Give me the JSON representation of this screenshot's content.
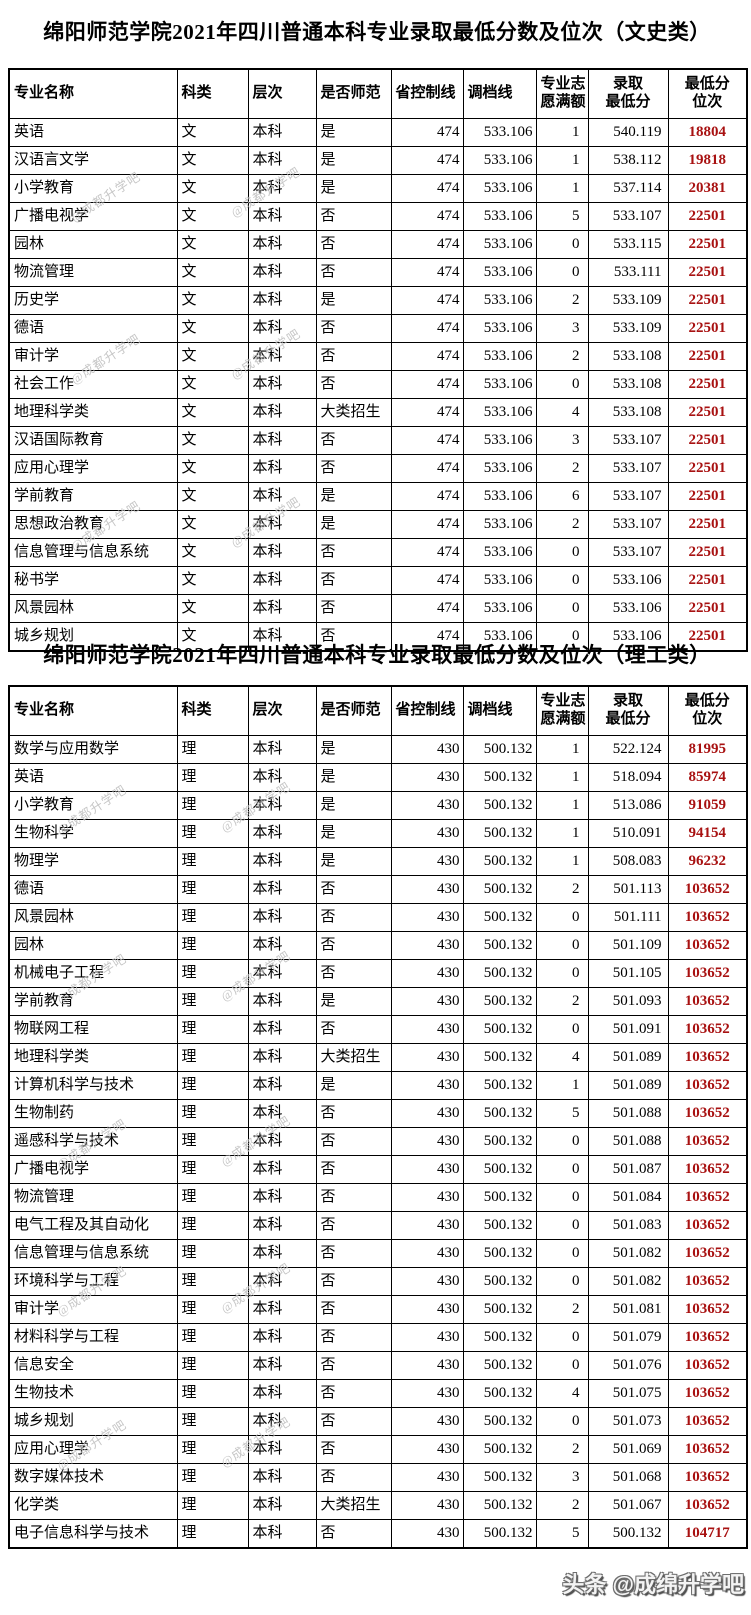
{
  "page": {
    "watermark": "@成都升学吧",
    "footer": "头条 @成绵升学吧",
    "colors": {
      "rank_red": "#a81111",
      "border": "#000000",
      "watermark_gray": "#bdbdbd"
    }
  },
  "columns": [
    "专业名称",
    "科类",
    "层次",
    "是否师范",
    "省控制线",
    "调档线",
    "专业志\n愿满额",
    "录取\n最低分",
    "最低分\n位次"
  ],
  "column_keys": [
    "major",
    "category",
    "level",
    "teacher-track",
    "province-control-line",
    "file-line",
    "major-quota-filled",
    "min-admit-score",
    "min-rank"
  ],
  "tables": [
    {
      "title": "绵阳师范学院2021年四川普通本科专业录取最低分数及位次（文史类）",
      "rows": [
        [
          "英语",
          "文",
          "本科",
          "是",
          "474",
          "533.106",
          "1",
          "540.119",
          "18804"
        ],
        [
          "汉语言文学",
          "文",
          "本科",
          "是",
          "474",
          "533.106",
          "1",
          "538.112",
          "19818"
        ],
        [
          "小学教育",
          "文",
          "本科",
          "是",
          "474",
          "533.106",
          "1",
          "537.114",
          "20381"
        ],
        [
          "广播电视学",
          "文",
          "本科",
          "否",
          "474",
          "533.106",
          "5",
          "533.107",
          "22501"
        ],
        [
          "园林",
          "文",
          "本科",
          "否",
          "474",
          "533.106",
          "0",
          "533.115",
          "22501"
        ],
        [
          "物流管理",
          "文",
          "本科",
          "否",
          "474",
          "533.106",
          "0",
          "533.111",
          "22501"
        ],
        [
          "历史学",
          "文",
          "本科",
          "是",
          "474",
          "533.106",
          "2",
          "533.109",
          "22501"
        ],
        [
          "德语",
          "文",
          "本科",
          "否",
          "474",
          "533.106",
          "3",
          "533.109",
          "22501"
        ],
        [
          "审计学",
          "文",
          "本科",
          "否",
          "474",
          "533.106",
          "2",
          "533.108",
          "22501"
        ],
        [
          "社会工作",
          "文",
          "本科",
          "否",
          "474",
          "533.106",
          "0",
          "533.108",
          "22501"
        ],
        [
          "地理科学类",
          "文",
          "本科",
          "大类招生",
          "474",
          "533.106",
          "4",
          "533.108",
          "22501"
        ],
        [
          "汉语国际教育",
          "文",
          "本科",
          "否",
          "474",
          "533.106",
          "3",
          "533.107",
          "22501"
        ],
        [
          "应用心理学",
          "文",
          "本科",
          "否",
          "474",
          "533.106",
          "2",
          "533.107",
          "22501"
        ],
        [
          "学前教育",
          "文",
          "本科",
          "是",
          "474",
          "533.106",
          "6",
          "533.107",
          "22501"
        ],
        [
          "思想政治教育",
          "文",
          "本科",
          "是",
          "474",
          "533.106",
          "2",
          "533.107",
          "22501"
        ],
        [
          "信息管理与信息系统",
          "文",
          "本科",
          "否",
          "474",
          "533.106",
          "0",
          "533.107",
          "22501"
        ],
        [
          "秘书学",
          "文",
          "本科",
          "否",
          "474",
          "533.106",
          "0",
          "533.106",
          "22501"
        ],
        [
          "风景园林",
          "文",
          "本科",
          "否",
          "474",
          "533.106",
          "0",
          "533.106",
          "22501"
        ],
        [
          "城乡规划",
          "文",
          "本科",
          "否",
          "474",
          "533.106",
          "0",
          "533.106",
          "22501"
        ]
      ]
    },
    {
      "title": "绵阳师范学院2021年四川普通本科专业录取最低分数及位次（理工类）",
      "rows": [
        [
          "数学与应用数学",
          "理",
          "本科",
          "是",
          "430",
          "500.132",
          "1",
          "522.124",
          "81995"
        ],
        [
          "英语",
          "理",
          "本科",
          "是",
          "430",
          "500.132",
          "1",
          "518.094",
          "85974"
        ],
        [
          "小学教育",
          "理",
          "本科",
          "是",
          "430",
          "500.132",
          "1",
          "513.086",
          "91059"
        ],
        [
          "生物科学",
          "理",
          "本科",
          "是",
          "430",
          "500.132",
          "1",
          "510.091",
          "94154"
        ],
        [
          "物理学",
          "理",
          "本科",
          "是",
          "430",
          "500.132",
          "1",
          "508.083",
          "96232"
        ],
        [
          "德语",
          "理",
          "本科",
          "否",
          "430",
          "500.132",
          "2",
          "501.113",
          "103652"
        ],
        [
          "风景园林",
          "理",
          "本科",
          "否",
          "430",
          "500.132",
          "0",
          "501.111",
          "103652"
        ],
        [
          "园林",
          "理",
          "本科",
          "否",
          "430",
          "500.132",
          "0",
          "501.109",
          "103652"
        ],
        [
          "机械电子工程",
          "理",
          "本科",
          "否",
          "430",
          "500.132",
          "0",
          "501.105",
          "103652"
        ],
        [
          "学前教育",
          "理",
          "本科",
          "是",
          "430",
          "500.132",
          "2",
          "501.093",
          "103652"
        ],
        [
          "物联网工程",
          "理",
          "本科",
          "否",
          "430",
          "500.132",
          "0",
          "501.091",
          "103652"
        ],
        [
          "地理科学类",
          "理",
          "本科",
          "大类招生",
          "430",
          "500.132",
          "4",
          "501.089",
          "103652"
        ],
        [
          "计算机科学与技术",
          "理",
          "本科",
          "是",
          "430",
          "500.132",
          "1",
          "501.089",
          "103652"
        ],
        [
          "生物制药",
          "理",
          "本科",
          "否",
          "430",
          "500.132",
          "5",
          "501.088",
          "103652"
        ],
        [
          "遥感科学与技术",
          "理",
          "本科",
          "否",
          "430",
          "500.132",
          "0",
          "501.088",
          "103652"
        ],
        [
          "广播电视学",
          "理",
          "本科",
          "否",
          "430",
          "500.132",
          "0",
          "501.087",
          "103652"
        ],
        [
          "物流管理",
          "理",
          "本科",
          "否",
          "430",
          "500.132",
          "0",
          "501.084",
          "103652"
        ],
        [
          "电气工程及其自动化",
          "理",
          "本科",
          "否",
          "430",
          "500.132",
          "0",
          "501.083",
          "103652"
        ],
        [
          "信息管理与信息系统",
          "理",
          "本科",
          "否",
          "430",
          "500.132",
          "0",
          "501.082",
          "103652"
        ],
        [
          "环境科学与工程",
          "理",
          "本科",
          "否",
          "430",
          "500.132",
          "0",
          "501.082",
          "103652"
        ],
        [
          "审计学",
          "理",
          "本科",
          "否",
          "430",
          "500.132",
          "2",
          "501.081",
          "103652"
        ],
        [
          "材料科学与工程",
          "理",
          "本科",
          "否",
          "430",
          "500.132",
          "0",
          "501.079",
          "103652"
        ],
        [
          "信息安全",
          "理",
          "本科",
          "否",
          "430",
          "500.132",
          "0",
          "501.076",
          "103652"
        ],
        [
          "生物技术",
          "理",
          "本科",
          "否",
          "430",
          "500.132",
          "4",
          "501.075",
          "103652"
        ],
        [
          "城乡规划",
          "理",
          "本科",
          "否",
          "430",
          "500.132",
          "0",
          "501.073",
          "103652"
        ],
        [
          "应用心理学",
          "理",
          "本科",
          "否",
          "430",
          "500.132",
          "2",
          "501.069",
          "103652"
        ],
        [
          "数字媒体技术",
          "理",
          "本科",
          "否",
          "430",
          "500.132",
          "3",
          "501.068",
          "103652"
        ],
        [
          "化学类",
          "理",
          "本科",
          "大类招生",
          "430",
          "500.132",
          "2",
          "501.067",
          "103652"
        ],
        [
          "电子信息科学与技术",
          "理",
          "本科",
          "否",
          "430",
          "500.132",
          "5",
          "500.132",
          "104717"
        ]
      ]
    }
  ]
}
